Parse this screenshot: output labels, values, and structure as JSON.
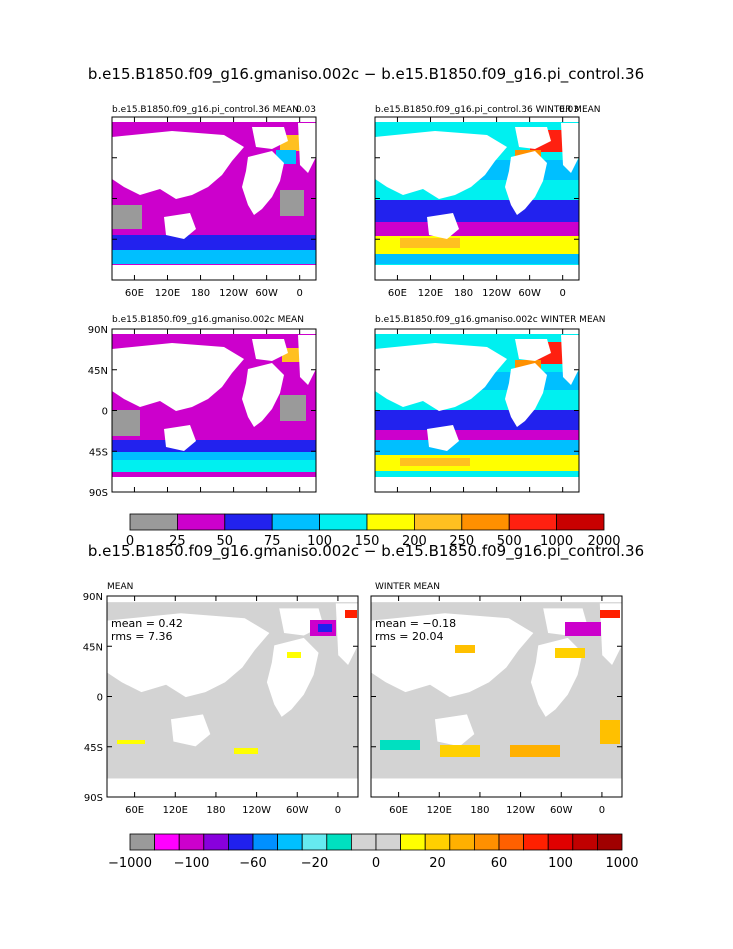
{
  "figure": {
    "top_title": "b.e15.B1850.f09_g16.gmaniso.002c − b.e15.B1850.f09_g16.pi_control.36",
    "bottom_title": "b.e15.B1850.f09_g16.gmaniso.002c − b.e15.B1850.f09_g16.pi_control.36"
  },
  "chart_data": [
    {
      "type": "heatmap",
      "title": "b.e15.B1850.f09_g16.pi_control.36 MEAN",
      "corner_label": "0.03",
      "x_ticks": [
        "60E",
        "120E",
        "180",
        "120W",
        "60W",
        "0"
      ],
      "y_ticks": []
    },
    {
      "type": "heatmap",
      "title": "b.e15.B1850.f09_g16.pi_control.36 WINTER MEAN",
      "corner_label": "0.03",
      "x_ticks": [
        "60E",
        "120E",
        "180",
        "120W",
        "60W",
        "0"
      ],
      "y_ticks": []
    },
    {
      "type": "heatmap",
      "title": "b.e15.B1850.f09_g16.gmaniso.002c MEAN",
      "x_ticks": [],
      "y_ticks": [
        "90N",
        "45N",
        "0",
        "45S",
        "90S"
      ]
    },
    {
      "type": "heatmap",
      "title": "b.e15.B1850.f09_g16.gmaniso.002c WINTER MEAN",
      "x_ticks": [],
      "y_ticks": []
    },
    {
      "type": "heatmap",
      "title": "MEAN",
      "stats": {
        "mean": "mean = 0.42",
        "rms": "rms = 7.36"
      },
      "x_ticks": [
        "60E",
        "120E",
        "180",
        "120W",
        "60W",
        "0"
      ],
      "y_ticks": [
        "90N",
        "45N",
        "0",
        "45S",
        "90S"
      ]
    },
    {
      "type": "heatmap",
      "title": "WINTER MEAN",
      "stats": {
        "mean": "mean = −0.18",
        "rms": "rms = 20.04"
      },
      "x_ticks": [
        "60E",
        "120E",
        "180",
        "120W",
        "60W",
        "0"
      ],
      "y_ticks": []
    }
  ],
  "colorbar_top": {
    "labels": [
      "0",
      "25",
      "50",
      "75",
      "100",
      "150",
      "200",
      "250",
      "500",
      "1000",
      "2000"
    ],
    "colors": [
      "#9a9a9a",
      "#cc00cc",
      "#2222ee",
      "#00bfff",
      "#00f0f0",
      "#ffff00",
      "#ffc020",
      "#ff9000",
      "#ff2010",
      "#c80000"
    ]
  },
  "colorbar_bottom": {
    "labels": [
      "−1000",
      "−100",
      "−60",
      "−20",
      "0",
      "20",
      "60",
      "100",
      "1000"
    ],
    "colors": [
      "#9a9a9a",
      "#ff00ff",
      "#cc00cc",
      "#8800dd",
      "#2020ee",
      "#0090ff",
      "#00c0ff",
      "#66eaf0",
      "#00e0c0",
      "#d3d3d3",
      "#d3d3d3",
      "#ffff00",
      "#ffd000",
      "#ffb000",
      "#ff9000",
      "#ff6000",
      "#ff2000",
      "#e00000",
      "#c00000",
      "#a00000"
    ]
  },
  "colors": {
    "land": "#ffffff",
    "frame": "#000000",
    "diff_background": "#d3d3d3"
  }
}
